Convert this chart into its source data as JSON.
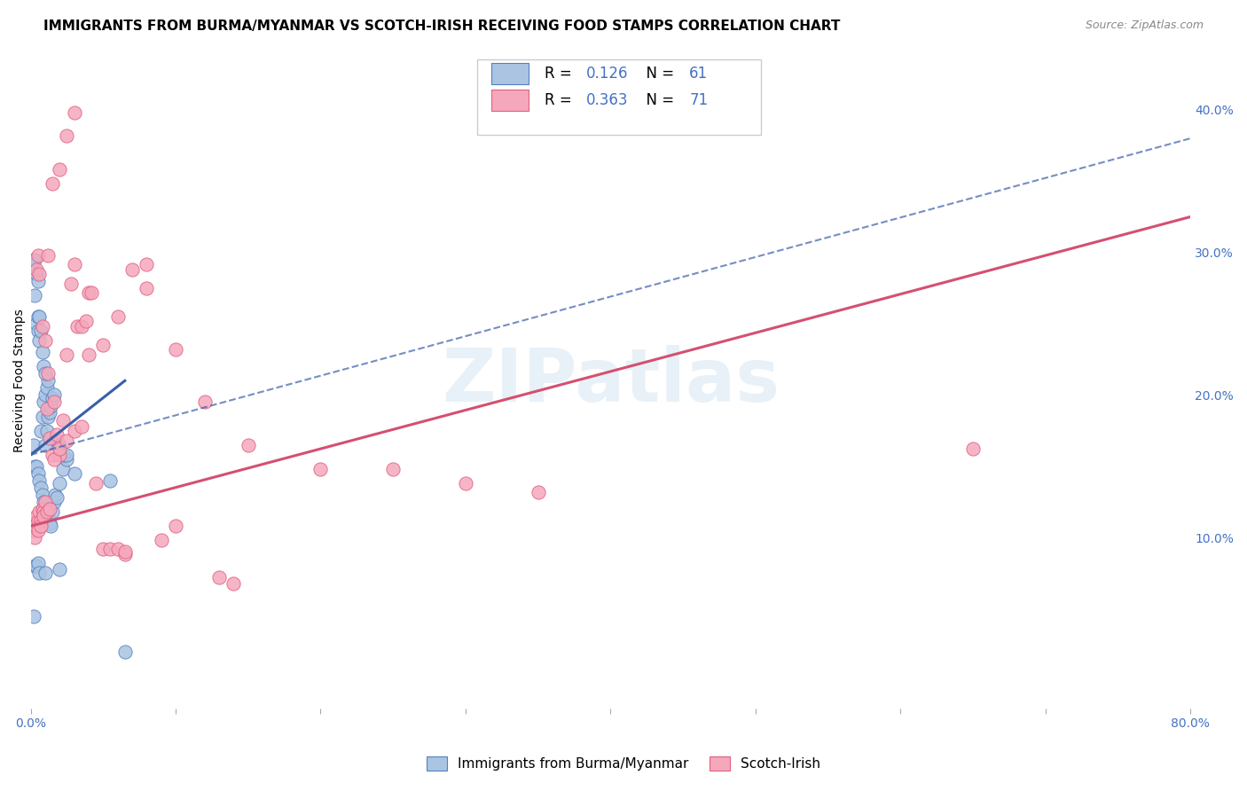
{
  "title": "IMMIGRANTS FROM BURMA/MYANMAR VS SCOTCH-IRISH RECEIVING FOOD STAMPS CORRELATION CHART",
  "source": "Source: ZipAtlas.com",
  "ylabel": "Receiving Food Stamps",
  "xlim": [
    0.0,
    0.8
  ],
  "ylim": [
    -0.02,
    0.44
  ],
  "xticks": [
    0.0,
    0.1,
    0.2,
    0.3,
    0.4,
    0.5,
    0.6,
    0.7,
    0.8
  ],
  "yticks_right": [
    0.1,
    0.2,
    0.3,
    0.4
  ],
  "ytick_labels_right": [
    "10.0%",
    "20.0%",
    "30.0%",
    "40.0%"
  ],
  "blue_color": "#aac4e2",
  "pink_color": "#f5a8bc",
  "blue_edge_color": "#5580c0",
  "pink_edge_color": "#e06080",
  "blue_line_color": "#3a5fa8",
  "pink_line_color": "#d45070",
  "legend_R1": "0.126",
  "legend_N1": "61",
  "legend_R2": "0.363",
  "legend_N2": "71",
  "legend_label1": "Immigrants from Burma/Myanmar",
  "legend_label2": "Scotch-Irish",
  "watermark": "ZIPatlas",
  "blue_scatter_x": [
    0.002,
    0.003,
    0.004,
    0.005,
    0.006,
    0.007,
    0.008,
    0.009,
    0.01,
    0.011,
    0.012,
    0.013,
    0.014,
    0.015,
    0.016,
    0.017,
    0.018,
    0.02,
    0.022,
    0.025,
    0.003,
    0.004,
    0.005,
    0.006,
    0.007,
    0.008,
    0.009,
    0.01,
    0.011,
    0.012,
    0.002,
    0.003,
    0.004,
    0.005,
    0.005,
    0.006,
    0.007,
    0.008,
    0.009,
    0.01,
    0.01,
    0.011,
    0.012,
    0.013,
    0.014,
    0.015,
    0.016,
    0.018,
    0.02,
    0.022,
    0.025,
    0.003,
    0.004,
    0.005,
    0.006,
    0.01,
    0.02,
    0.03,
    0.055,
    0.065,
    0.002
  ],
  "blue_scatter_y": [
    0.165,
    0.15,
    0.15,
    0.145,
    0.14,
    0.135,
    0.13,
    0.125,
    0.12,
    0.118,
    0.115,
    0.11,
    0.108,
    0.118,
    0.125,
    0.13,
    0.128,
    0.138,
    0.148,
    0.155,
    0.27,
    0.25,
    0.245,
    0.238,
    0.175,
    0.185,
    0.195,
    0.2,
    0.205,
    0.21,
    0.295,
    0.295,
    0.285,
    0.28,
    0.255,
    0.255,
    0.245,
    0.23,
    0.22,
    0.215,
    0.165,
    0.175,
    0.185,
    0.188,
    0.192,
    0.198,
    0.2,
    0.168,
    0.165,
    0.158,
    0.158,
    0.08,
    0.08,
    0.082,
    0.075,
    0.075,
    0.078,
    0.145,
    0.14,
    0.02,
    0.045
  ],
  "pink_scatter_x": [
    0.002,
    0.003,
    0.004,
    0.005,
    0.006,
    0.007,
    0.008,
    0.009,
    0.01,
    0.011,
    0.012,
    0.013,
    0.015,
    0.016,
    0.018,
    0.02,
    0.022,
    0.025,
    0.028,
    0.03,
    0.032,
    0.035,
    0.038,
    0.04,
    0.042,
    0.045,
    0.05,
    0.055,
    0.06,
    0.065,
    0.004,
    0.005,
    0.006,
    0.008,
    0.01,
    0.012,
    0.015,
    0.02,
    0.025,
    0.03,
    0.002,
    0.003,
    0.005,
    0.007,
    0.009,
    0.011,
    0.013,
    0.016,
    0.02,
    0.025,
    0.03,
    0.035,
    0.04,
    0.05,
    0.06,
    0.08,
    0.1,
    0.12,
    0.15,
    0.2,
    0.25,
    0.3,
    0.35,
    0.065,
    0.07,
    0.08,
    0.09,
    0.1,
    0.13,
    0.14,
    0.65
  ],
  "pink_scatter_y": [
    0.11,
    0.108,
    0.115,
    0.112,
    0.118,
    0.112,
    0.12,
    0.118,
    0.125,
    0.19,
    0.215,
    0.17,
    0.158,
    0.195,
    0.172,
    0.158,
    0.182,
    0.228,
    0.278,
    0.292,
    0.248,
    0.248,
    0.252,
    0.272,
    0.272,
    0.138,
    0.092,
    0.092,
    0.092,
    0.088,
    0.288,
    0.298,
    0.285,
    0.248,
    0.238,
    0.298,
    0.348,
    0.358,
    0.382,
    0.398,
    0.105,
    0.1,
    0.105,
    0.108,
    0.115,
    0.118,
    0.12,
    0.155,
    0.162,
    0.168,
    0.175,
    0.178,
    0.228,
    0.235,
    0.255,
    0.275,
    0.232,
    0.195,
    0.165,
    0.148,
    0.148,
    0.138,
    0.132,
    0.09,
    0.288,
    0.292,
    0.098,
    0.108,
    0.072,
    0.068,
    0.162
  ],
  "blue_trend_x": [
    0.0,
    0.065
  ],
  "blue_trend_y": [
    0.158,
    0.21
  ],
  "pink_trend_x": [
    0.0,
    0.8
  ],
  "pink_trend_y": [
    0.108,
    0.325
  ],
  "blue_dash_trend_x": [
    0.0,
    0.8
  ],
  "blue_dash_trend_y": [
    0.158,
    0.38
  ],
  "background_color": "#ffffff",
  "grid_color": "#d8d8d8",
  "title_fontsize": 11,
  "axis_label_fontsize": 10,
  "tick_fontsize": 10,
  "value_color": "#4472c4"
}
